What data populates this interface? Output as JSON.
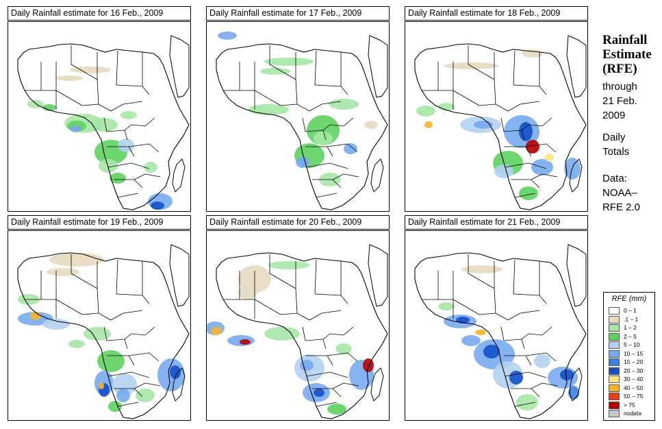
{
  "panels": [
    {
      "title": "Daily Rainfall estimate for  16 Feb., 2009"
    },
    {
      "title": "Daily Rainfall estimate for  17 Feb., 2009"
    },
    {
      "title": "Daily Rainfall estimate for  18 Feb., 2009"
    },
    {
      "title": "Daily Rainfall estimate for  19 Feb., 2009"
    },
    {
      "title": "Daily Rainfall estimate for  20 Feb., 2009"
    },
    {
      "title": "Daily Rainfall estimate for  21 Feb., 2009"
    }
  ],
  "sidebar": {
    "title_line1": "Rainfall",
    "title_line2": "Estimate",
    "title_line3": "(RFE)",
    "through_line1": "through",
    "through_line2": "21 Feb.",
    "through_line3": "2009",
    "totals_line1": "Daily",
    "totals_line2": "Totals",
    "source_line1": "Data:",
    "source_line2": "NOAA–",
    "source_line3": "RFE 2.0"
  },
  "legend": {
    "title": "RFE (mm)",
    "classes": [
      {
        "label": "0 – 1",
        "color": "#ffffff"
      },
      {
        "label": ".1 – 1",
        "color": "#e8d9c0"
      },
      {
        "label": "1 – 2",
        "color": "#a6e7a6"
      },
      {
        "label": "2 – 5",
        "color": "#5ed25e"
      },
      {
        "label": "5 – 10",
        "color": "#b4d2f0"
      },
      {
        "label": "10 – 15",
        "color": "#78aaf0"
      },
      {
        "label": "15 – 20",
        "color": "#3c82e6"
      },
      {
        "label": "20 – 30",
        "color": "#1450c8"
      },
      {
        "label": "30 – 40",
        "color": "#fae682"
      },
      {
        "label": "40 – 50",
        "color": "#fab428"
      },
      {
        "label": "50 – 75",
        "color": "#f03c14"
      },
      {
        "label": "> 75",
        "color": "#b40000"
      },
      {
        "label": "nodata",
        "color": "#c8c8c8"
      }
    ]
  },
  "map_style": {
    "border_color": "#000000",
    "land_fill": "#ffffff"
  }
}
